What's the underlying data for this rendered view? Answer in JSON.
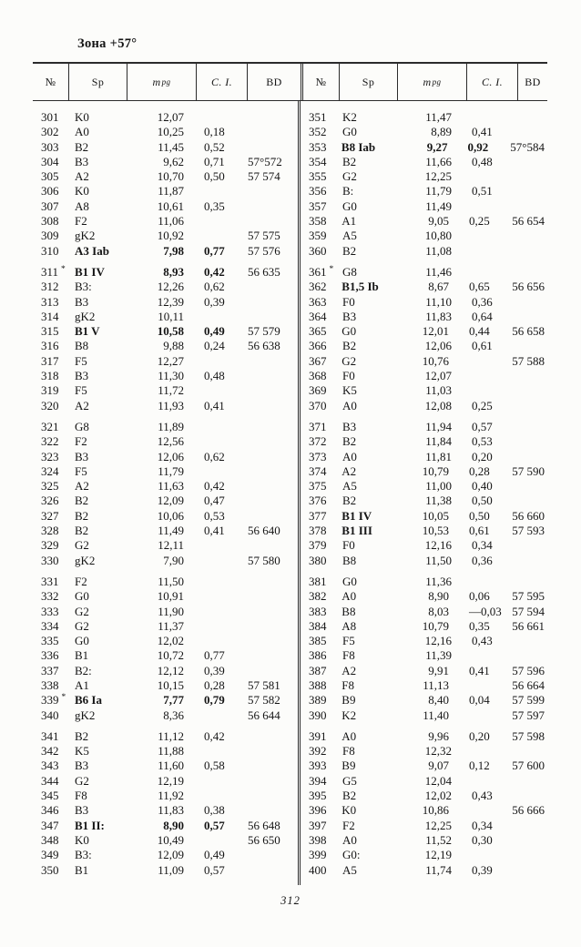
{
  "page": {
    "title": "Зона +57°",
    "page_number": "312"
  },
  "table": {
    "headers": {
      "no": "№",
      "sp": "Sp",
      "m": "m",
      "m_sub": "pg",
      "ci": "C. I.",
      "bd": "BD"
    },
    "left_rows": [
      {
        "no": "301",
        "sp": "K0",
        "mpg": "12,07",
        "ci": "",
        "bd": ""
      },
      {
        "no": "302",
        "sp": "A0",
        "mpg": "10,25",
        "ci": "0,18",
        "bd": ""
      },
      {
        "no": "303",
        "sp": "B2",
        "mpg": "11,45",
        "ci": "0,52",
        "bd": ""
      },
      {
        "no": "304",
        "sp": "B3",
        "mpg": "9,62",
        "ci": "0,71",
        "bd": "57°572"
      },
      {
        "no": "305",
        "sp": "A2",
        "mpg": "10,70",
        "ci": "0,50",
        "bd": "57 574"
      },
      {
        "no": "306",
        "sp": "K0",
        "mpg": "11,87",
        "ci": "",
        "bd": ""
      },
      {
        "no": "307",
        "sp": "A8",
        "mpg": "10,61",
        "ci": "0,35",
        "bd": ""
      },
      {
        "no": "308",
        "sp": "F2",
        "mpg": "11,06",
        "ci": "",
        "bd": ""
      },
      {
        "no": "309",
        "sp": "gK2",
        "mpg": "10,92",
        "ci": "",
        "bd": "57 575"
      },
      {
        "no": "310",
        "sp": "A3 Iab",
        "mpg": "7,98",
        "ci": "0,77",
        "bd": "57 576",
        "b": "all"
      },
      {
        "no": "311",
        "ast": true,
        "sp": "B1 IV",
        "mpg": "8,93",
        "ci": "0,42",
        "bd": "56 635",
        "b": "all"
      },
      {
        "no": "312",
        "sp": "B3:",
        "mpg": "12,26",
        "ci": "0,62",
        "bd": ""
      },
      {
        "no": "313",
        "sp": "B3",
        "mpg": "12,39",
        "ci": "0,39",
        "bd": ""
      },
      {
        "no": "314",
        "sp": "gK2",
        "mpg": "10,11",
        "ci": "",
        "bd": ""
      },
      {
        "no": "315",
        "sp": "B1 V",
        "mpg": "10,58",
        "ci": "0,49",
        "bd": "57 579",
        "b": "all"
      },
      {
        "no": "316",
        "sp": "B8",
        "mpg": "9,88",
        "ci": "0,24",
        "bd": "56 638"
      },
      {
        "no": "317",
        "sp": "F5",
        "mpg": "12,27",
        "ci": "",
        "bd": ""
      },
      {
        "no": "318",
        "sp": "B3",
        "mpg": "11,30",
        "ci": "0,48",
        "bd": ""
      },
      {
        "no": "319",
        "sp": "F5",
        "mpg": "11,72",
        "ci": "",
        "bd": ""
      },
      {
        "no": "320",
        "sp": "A2",
        "mpg": "11,93",
        "ci": "0,41",
        "bd": ""
      },
      {
        "no": "321",
        "sp": "G8",
        "mpg": "11,89",
        "ci": "",
        "bd": ""
      },
      {
        "no": "322",
        "sp": "F2",
        "mpg": "12,56",
        "ci": "",
        "bd": ""
      },
      {
        "no": "323",
        "sp": "B3",
        "mpg": "12,06",
        "ci": "0,62",
        "bd": ""
      },
      {
        "no": "324",
        "sp": "F5",
        "mpg": "11,79",
        "ci": "",
        "bd": ""
      },
      {
        "no": "325",
        "sp": "A2",
        "mpg": "11,63",
        "ci": "0,42",
        "bd": ""
      },
      {
        "no": "326",
        "sp": "B2",
        "mpg": "12,09",
        "ci": "0,47",
        "bd": ""
      },
      {
        "no": "327",
        "sp": "B2",
        "mpg": "10,06",
        "ci": "0,53",
        "bd": ""
      },
      {
        "no": "328",
        "sp": "B2",
        "mpg": "11,49",
        "ci": "0,41",
        "bd": "56 640"
      },
      {
        "no": "329",
        "sp": "G2",
        "mpg": "12,11",
        "ci": "",
        "bd": ""
      },
      {
        "no": "330",
        "sp": "gK2",
        "mpg": "7,90",
        "ci": "",
        "bd": "57 580"
      },
      {
        "no": "331",
        "sp": "F2",
        "mpg": "11,50",
        "ci": "",
        "bd": ""
      },
      {
        "no": "332",
        "sp": "G0",
        "mpg": "10,91",
        "ci": "",
        "bd": ""
      },
      {
        "no": "333",
        "sp": "G2",
        "mpg": "11,90",
        "ci": "",
        "bd": ""
      },
      {
        "no": "334",
        "sp": "G2",
        "mpg": "11,37",
        "ci": "",
        "bd": ""
      },
      {
        "no": "335",
        "sp": "G0",
        "mpg": "12,02",
        "ci": "",
        "bd": ""
      },
      {
        "no": "336",
        "sp": "B1",
        "mpg": "10,72",
        "ci": "0,77",
        "bd": ""
      },
      {
        "no": "337",
        "sp": "B2:",
        "mpg": "12,12",
        "ci": "0,39",
        "bd": ""
      },
      {
        "no": "338",
        "sp": "A1",
        "mpg": "10,15",
        "ci": "0,28",
        "bd": "57 581"
      },
      {
        "no": "339",
        "ast": true,
        "sp": "B6 Ia",
        "mpg": "7,77",
        "ci": "0,79",
        "bd": "57 582",
        "b": "all"
      },
      {
        "no": "340",
        "sp": "gK2",
        "mpg": "8,36",
        "ci": "",
        "bd": "56 644"
      },
      {
        "no": "341",
        "sp": "B2",
        "mpg": "11,12",
        "ci": "0,42",
        "bd": ""
      },
      {
        "no": "342",
        "sp": "K5",
        "mpg": "11,88",
        "ci": "",
        "bd": ""
      },
      {
        "no": "343",
        "sp": "B3",
        "mpg": "11,60",
        "ci": "0,58",
        "bd": ""
      },
      {
        "no": "344",
        "sp": "G2",
        "mpg": "12,19",
        "ci": "",
        "bd": ""
      },
      {
        "no": "345",
        "sp": "F8",
        "mpg": "11,92",
        "ci": "",
        "bd": ""
      },
      {
        "no": "346",
        "sp": "B3",
        "mpg": "11,83",
        "ci": "0,38",
        "bd": ""
      },
      {
        "no": "347",
        "sp": "B1 II:",
        "mpg": "8,90",
        "ci": "0,57",
        "bd": "56 648",
        "b": "all"
      },
      {
        "no": "348",
        "sp": "K0",
        "mpg": "10,49",
        "ci": "",
        "bd": "56 650"
      },
      {
        "no": "349",
        "sp": "B3:",
        "mpg": "12,09",
        "ci": "0,49",
        "bd": ""
      },
      {
        "no": "350",
        "sp": "B1",
        "mpg": "11,09",
        "ci": "0,57",
        "bd": ""
      }
    ],
    "right_rows": [
      {
        "no": "351",
        "sp": "K2",
        "mpg": "11,47",
        "ci": "",
        "bd": ""
      },
      {
        "no": "352",
        "sp": "G0",
        "mpg": "8,89",
        "ci": "0,41",
        "bd": ""
      },
      {
        "no": "353",
        "sp": "B8 Iab",
        "mpg": "9,27",
        "ci": "0,92",
        "bd": "57°584",
        "b": "all"
      },
      {
        "no": "354",
        "sp": "B2",
        "mpg": "11,66",
        "ci": "0,48",
        "bd": ""
      },
      {
        "no": "355",
        "sp": "G2",
        "mpg": "12,25",
        "ci": "",
        "bd": ""
      },
      {
        "no": "356",
        "sp": "B:",
        "mpg": "11,79",
        "ci": "0,51",
        "bd": ""
      },
      {
        "no": "357",
        "sp": "G0",
        "mpg": "11,49",
        "ci": "",
        "bd": ""
      },
      {
        "no": "358",
        "sp": "A1",
        "mpg": "9,05",
        "ci": "0,25",
        "bd": "56 654"
      },
      {
        "no": "359",
        "sp": "A5",
        "mpg": "10,80",
        "ci": "",
        "bd": ""
      },
      {
        "no": "360",
        "sp": "B2",
        "mpg": "11,08",
        "ci": "",
        "bd": ""
      },
      {
        "no": "361",
        "ast": true,
        "sp": "G8",
        "mpg": "11,46",
        "ci": "",
        "bd": ""
      },
      {
        "no": "362",
        "sp": "B1,5 Ib",
        "mpg": "8,67",
        "ci": "0,65",
        "bd": "56 656",
        "b": "sp"
      },
      {
        "no": "363",
        "sp": "F0",
        "mpg": "11,10",
        "ci": "0,36",
        "bd": ""
      },
      {
        "no": "364",
        "sp": "B3",
        "mpg": "11,83",
        "ci": "0,64",
        "bd": ""
      },
      {
        "no": "365",
        "sp": "G0",
        "mpg": "12,01",
        "ci": "0,44",
        "bd": "56 658"
      },
      {
        "no": "366",
        "sp": "B2",
        "mpg": "12,06",
        "ci": "0,61",
        "bd": ""
      },
      {
        "no": "367",
        "sp": "G2",
        "mpg": "10,76",
        "ci": "",
        "bd": "57 588"
      },
      {
        "no": "368",
        "sp": "F0",
        "mpg": "12,07",
        "ci": "",
        "bd": ""
      },
      {
        "no": "369",
        "sp": "K5",
        "mpg": "11,03",
        "ci": "",
        "bd": ""
      },
      {
        "no": "370",
        "sp": "A0",
        "mpg": "12,08",
        "ci": "0,25",
        "bd": ""
      },
      {
        "no": "371",
        "sp": "B3",
        "mpg": "11,94",
        "ci": "0,57",
        "bd": ""
      },
      {
        "no": "372",
        "sp": "B2",
        "mpg": "11,84",
        "ci": "0,53",
        "bd": ""
      },
      {
        "no": "373",
        "sp": "A0",
        "mpg": "11,81",
        "ci": "0,20",
        "bd": ""
      },
      {
        "no": "374",
        "sp": "A2",
        "mpg": "10,79",
        "ci": "0,28",
        "bd": "57 590"
      },
      {
        "no": "375",
        "sp": "A5",
        "mpg": "11,00",
        "ci": "0,40",
        "bd": ""
      },
      {
        "no": "376",
        "sp": "B2",
        "mpg": "11,38",
        "ci": "0,50",
        "bd": ""
      },
      {
        "no": "377",
        "sp": "B1 IV",
        "mpg": "10,05",
        "ci": "0,50",
        "bd": "56 660",
        "b": "sp"
      },
      {
        "no": "378",
        "sp": "B1 III",
        "mpg": "10,53",
        "ci": "0,61",
        "bd": "57 593",
        "b": "sp"
      },
      {
        "no": "379",
        "sp": "F0",
        "mpg": "12,16",
        "ci": "0,34",
        "bd": ""
      },
      {
        "no": "380",
        "sp": "B8",
        "mpg": "11,50",
        "ci": "0,36",
        "bd": ""
      },
      {
        "no": "381",
        "sp": "G0",
        "mpg": "11,36",
        "ci": "",
        "bd": ""
      },
      {
        "no": "382",
        "sp": "A0",
        "mpg": "8,90",
        "ci": "0,06",
        "bd": "57 595"
      },
      {
        "no": "383",
        "sp": "B8",
        "mpg": "8,03",
        "ci": "—0,03",
        "bd": "57 594"
      },
      {
        "no": "384",
        "sp": "A8",
        "mpg": "10,79",
        "ci": "0,35",
        "bd": "56 661"
      },
      {
        "no": "385",
        "sp": "F5",
        "mpg": "12,16",
        "ci": "0,43",
        "bd": ""
      },
      {
        "no": "386",
        "sp": "F8",
        "mpg": "11,39",
        "ci": "",
        "bd": ""
      },
      {
        "no": "387",
        "sp": "A2",
        "mpg": "9,91",
        "ci": "0,41",
        "bd": "57 596"
      },
      {
        "no": "388",
        "sp": "F8",
        "mpg": "11,13",
        "ci": "",
        "bd": "56 664"
      },
      {
        "no": "389",
        "sp": "B9",
        "mpg": "8,40",
        "ci": "0,04",
        "bd": "57 599"
      },
      {
        "no": "390",
        "sp": "K2",
        "mpg": "11,40",
        "ci": "",
        "bd": "57 597"
      },
      {
        "no": "391",
        "sp": "A0",
        "mpg": "9,96",
        "ci": "0,20",
        "bd": "57 598"
      },
      {
        "no": "392",
        "sp": "F8",
        "mpg": "12,32",
        "ci": "",
        "bd": ""
      },
      {
        "no": "393",
        "sp": "B9",
        "mpg": "9,07",
        "ci": "0,12",
        "bd": "57 600"
      },
      {
        "no": "394",
        "sp": "G5",
        "mpg": "12,04",
        "ci": "",
        "bd": ""
      },
      {
        "no": "395",
        "sp": "B2",
        "mpg": "12,02",
        "ci": "0,43",
        "bd": ""
      },
      {
        "no": "396",
        "sp": "K0",
        "mpg": "10,86",
        "ci": "",
        "bd": "56 666"
      },
      {
        "no": "397",
        "sp": "F2",
        "mpg": "12,25",
        "ci": "0,34",
        "bd": ""
      },
      {
        "no": "398",
        "sp": "A0",
        "mpg": "11,52",
        "ci": "0,30",
        "bd": ""
      },
      {
        "no": "399",
        "sp": "G0:",
        "mpg": "12,19",
        "ci": "",
        "bd": ""
      },
      {
        "no": "400",
        "sp": "A5",
        "mpg": "11,74",
        "ci": "0,39",
        "bd": ""
      }
    ]
  }
}
